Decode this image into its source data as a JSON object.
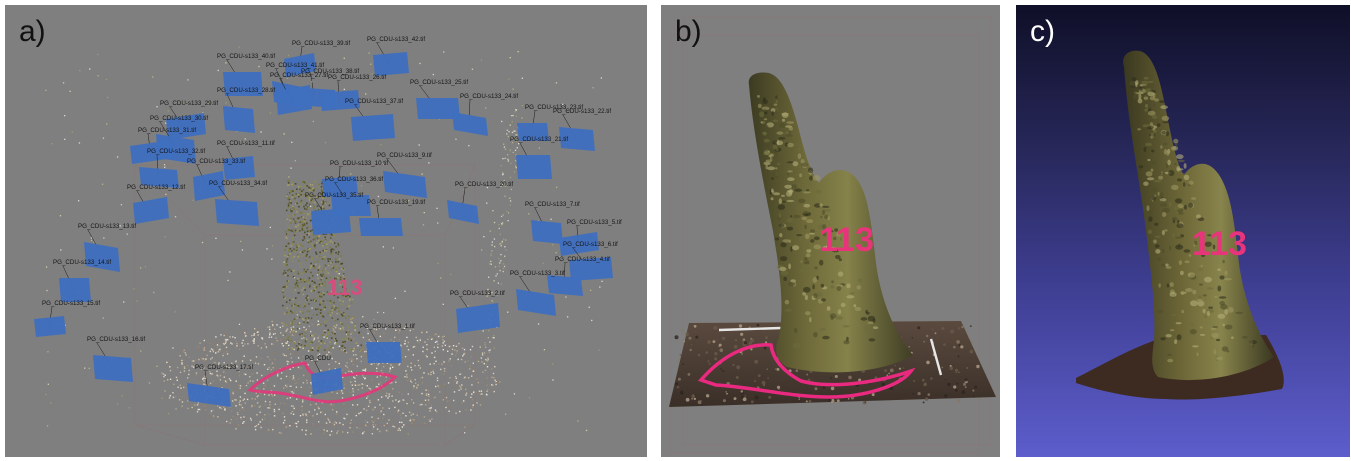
{
  "panels": {
    "a": {
      "label": "a)"
    },
    "b": {
      "label": "b)"
    },
    "c": {
      "label": "c)"
    }
  },
  "tree_marking": "113",
  "camera_labels": [
    "PG_CDU-s133_39.tif",
    "PG_CDU-s133_42.tif",
    "PG_CDU-s133_40.tif",
    "PG_CDU-s133_38.tif",
    "PG_CDU-s133_41.tif",
    "PG_CDU-s133_27.tif",
    "PG_CDU-s133_26.tif",
    "PG_CDU-s133_25.tif",
    "PG_CDU-s133_28.tif",
    "PG_CDU-s133_24.tif",
    "PG_CDU-s133_29.tif",
    "PG_CDU-s133_37.tif",
    "PG_CDU-s133_23.tif",
    "PG_CDU-s133_22.tif",
    "PG_CDU-s133_30.tif",
    "PG_CDU-s133_31.tif",
    "PG_CDU-s133_11.tif",
    "PG_CDU-s133_21.tif",
    "PG_CDU-s133_32.tif",
    "PG_CDU-s133_9.tif",
    "PG_CDU-s133_33.tif",
    "PG_CDU-s133_10.tif",
    "PG_CDU-s133_36.tif",
    "PG_CDU-s133_34.tif",
    "PG_CDU-s133_20.tif",
    "PG_CDU-s133_12.tif",
    "PG_CDU-s133_35.tif",
    "PG_CDU-s133_19.tif",
    "PG_CDU-s133_7.tif",
    "PG_CDU-s133_13.tif",
    "PG_CDU-s133_5.tif",
    "PG_CDU-s133_6.tif",
    "PG_CDU-s133_14.tif",
    "PG_CDU-s133_4.tif",
    "PG_CDU-s133_3.tif",
    "PG_CDU-s133_2.tif",
    "PG_CDU-s133_15.tif",
    "PG_CDU-s133_1.tif",
    "PG_CDU-s133_16.tif",
    "PG_CDU-s133_17.tif",
    "PG_CDU"
  ],
  "colors": {
    "viewport_gray": "#7f7f7f",
    "camera_blue": "#3f6fbf",
    "marking_pink": "#e8347a",
    "meshlab_bg_top": "#0f0f28",
    "meshlab_bg_bottom": "#5d5dcc"
  }
}
